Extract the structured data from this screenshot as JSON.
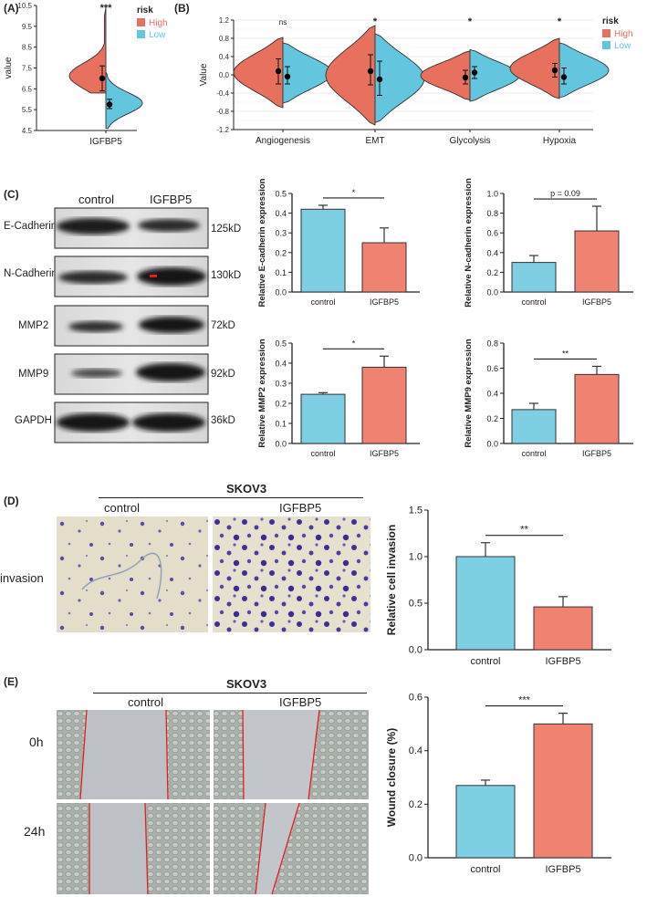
{
  "colors": {
    "high": "#e8705f",
    "low": "#63c6de",
    "bar_control": "#7ecfe3",
    "bar_igfbp5": "#ef8271",
    "axis": "#222222",
    "red_line": "#e02020"
  },
  "panels": {
    "A": {
      "label": "(A)"
    },
    "B": {
      "label": "(B)"
    },
    "C": {
      "label": "(C)"
    },
    "D": {
      "label": "(D)"
    },
    "E": {
      "label": "(E)"
    }
  },
  "blot": {
    "columns": [
      "control",
      "IGFBP5"
    ],
    "rows": [
      {
        "protein": "E-Cadherin",
        "size": "125kD"
      },
      {
        "protein": "N-Cadherin",
        "size": "130kD"
      },
      {
        "protein": "MMP2",
        "size": "72kD"
      },
      {
        "protein": "MMP9",
        "size": "92kD"
      },
      {
        "protein": "GAPDH",
        "size": "36kD"
      }
    ]
  },
  "invasion": {
    "cell_line": "SKOV3",
    "columns": [
      "control",
      "IGFBP5"
    ],
    "row_label": "invasion"
  },
  "wound": {
    "cell_line": "SKOV3",
    "columns": [
      "control",
      "IGFBP5"
    ],
    "rows": [
      "0h",
      "24h"
    ]
  },
  "chart_data": [
    {
      "type": "violin",
      "panel": "A",
      "ylabel": "value",
      "ylim": [
        4.5,
        10.5
      ],
      "yticks": [
        "4.5",
        "5.5",
        "6.5",
        "7.5",
        "8.5",
        "9.5",
        "10.5"
      ],
      "categories": [
        "IGFBP5"
      ],
      "legend_title": "risk",
      "legend_position": "top-right",
      "series": [
        {
          "name": "High",
          "mean": 7.0,
          "err_low": 6.4,
          "err_high": 7.6
        },
        {
          "name": "Low",
          "mean": 5.75,
          "err_low": 5.55,
          "err_high": 6.0
        }
      ],
      "significance": [
        "***"
      ]
    },
    {
      "type": "violin",
      "panel": "B",
      "ylabel": "Value",
      "ylim": [
        -1.2,
        1.2
      ],
      "yticks": [
        "-1.2",
        "-0.8",
        "-0.4",
        "0.0",
        "0.4",
        "0.8",
        "1.2"
      ],
      "categories": [
        "Angiogenesis",
        "EMT",
        "Glycolysis",
        "Hypoxia"
      ],
      "legend_title": "risk",
      "legend_position": "top-right",
      "series": [
        {
          "name": "High",
          "means": [
            0.08,
            0.08,
            -0.06,
            0.1
          ],
          "err_low": [
            -0.2,
            -0.22,
            -0.2,
            -0.05
          ],
          "err_high": [
            0.35,
            0.44,
            0.1,
            0.25
          ]
        },
        {
          "name": "Low",
          "means": [
            -0.04,
            -0.1,
            0.05,
            -0.05
          ],
          "err_low": [
            -0.2,
            -0.45,
            -0.08,
            -0.2
          ],
          "err_high": [
            0.18,
            0.3,
            0.18,
            0.15
          ]
        }
      ],
      "significance": [
        "ns",
        "*",
        "*",
        "*"
      ]
    },
    {
      "type": "bar",
      "panel": "C1",
      "categories": [
        "control",
        "IGFBP5"
      ],
      "values": [
        0.42,
        0.25
      ],
      "errors": [
        0.02,
        0.075
      ],
      "ylabel": "Relative E-cadherin expression",
      "ylim": [
        0,
        0.5
      ],
      "yticks": [
        "0.0",
        "0.1",
        "0.2",
        "0.3",
        "0.4",
        "0.5"
      ],
      "significance": "*"
    },
    {
      "type": "bar",
      "panel": "C2",
      "categories": [
        "control",
        "IGFBP5"
      ],
      "values": [
        0.3,
        0.62
      ],
      "errors": [
        0.07,
        0.25
      ],
      "ylabel": "Relative N-cadherin expression",
      "ylim": [
        0,
        1.0
      ],
      "yticks": [
        "0.0",
        "0.2",
        "0.4",
        "0.6",
        "0.8",
        "1.0"
      ],
      "significance": "p = 0.09"
    },
    {
      "type": "bar",
      "panel": "C3",
      "categories": [
        "control",
        "IGFBP5"
      ],
      "values": [
        0.245,
        0.38
      ],
      "errors": [
        0.008,
        0.055
      ],
      "ylabel": "Relative MMP2 expression",
      "ylim": [
        0,
        0.5
      ],
      "yticks": [
        "0.0",
        "0.1",
        "0.2",
        "0.3",
        "0.4",
        "0.5"
      ],
      "significance": "*"
    },
    {
      "type": "bar",
      "panel": "C4",
      "categories": [
        "control",
        "IGFBP5"
      ],
      "values": [
        0.27,
        0.55
      ],
      "errors": [
        0.05,
        0.065
      ],
      "ylabel": "Relative MMP9 expression",
      "ylim": [
        0,
        0.8
      ],
      "yticks": [
        "0.0",
        "0.2",
        "0.4",
        "0.6",
        "0.8"
      ],
      "significance": "**"
    },
    {
      "type": "bar",
      "panel": "D",
      "categories": [
        "control",
        "IGFBP5"
      ],
      "values": [
        1.0,
        0.46
      ],
      "errors": [
        0.15,
        0.11
      ],
      "ylabel": "Relative cell invasion",
      "ylim": [
        0,
        1.5
      ],
      "yticks": [
        "0.0",
        "0.5",
        "1.0",
        "1.5"
      ],
      "significance": "**"
    },
    {
      "type": "bar",
      "panel": "E",
      "categories": [
        "control",
        "IGFBP5"
      ],
      "values": [
        0.27,
        0.5
      ],
      "errors": [
        0.02,
        0.04
      ],
      "ylabel": "Wound closure (%)",
      "ylim": [
        0,
        0.6
      ],
      "yticks": [
        "0.0",
        "0.2",
        "0.4",
        "0.6"
      ],
      "significance": "***"
    }
  ]
}
